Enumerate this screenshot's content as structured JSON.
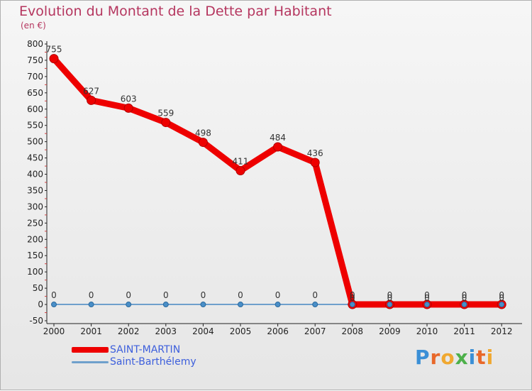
{
  "chart_data": {
    "type": "line",
    "title": "Evolution du Montant de la Dette par Habitant",
    "subtitle": "(en €)",
    "xlabel": "",
    "ylabel": "",
    "categories": [
      "2000",
      "2001",
      "2002",
      "2003",
      "2004",
      "2005",
      "2006",
      "2007",
      "2008",
      "2009",
      "2010",
      "2011",
      "2012"
    ],
    "ylim": [
      -50,
      800
    ],
    "ytick_step": 50,
    "grid": false,
    "series": [
      {
        "name": "SAINT-MARTIN",
        "color": "#ee0000",
        "values": [
          755,
          627,
          603,
          559,
          498,
          411,
          484,
          436,
          0,
          0,
          0,
          0,
          0
        ],
        "labels": [
          "755",
          "627",
          "603",
          "559",
          "498",
          "411",
          "484",
          "436",
          "0",
          "0",
          "0",
          "0",
          "0"
        ]
      },
      {
        "name": "Saint-Barthélemy",
        "color": "#6fa0cc",
        "values": [
          0,
          0,
          0,
          0,
          0,
          0,
          0,
          0,
          0,
          0,
          0,
          0,
          0
        ],
        "labels": [
          "0",
          "0",
          "0",
          "0",
          "0",
          "0",
          "0",
          "0",
          "0",
          "0",
          "0",
          "0",
          "0"
        ]
      }
    ],
    "legend_position": "bottom-left"
  },
  "brand": {
    "text": "Proxiti",
    "colors": [
      "#3a8fd6",
      "#e8682a",
      "#f0a830",
      "#4db04a",
      "#3a8fd6",
      "#e8682a",
      "#f0a830"
    ]
  }
}
